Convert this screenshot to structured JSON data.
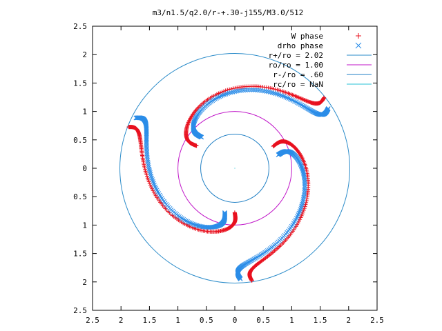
{
  "chart_data": {
    "type": "scatter",
    "title": "m3/n1.5/q2.0/r-+.30-j155/M3.0/512",
    "xlabel": "",
    "ylabel": "",
    "xlim": [
      2.5,
      -2.5
    ],
    "ylim": [
      -2.5,
      2.5
    ],
    "x_tick_labels": [
      "2.5",
      "2",
      "1.5",
      "1",
      "0.5",
      "0",
      "0.5",
      "1",
      "1.5",
      "2",
      "2.5"
    ],
    "y_tick_labels": [
      "2.5",
      "2",
      "1.5",
      "1",
      "0.5",
      "0",
      "0.5",
      "1",
      "1.5",
      "2",
      "2.5"
    ],
    "grid": false,
    "legend_position": "top-right",
    "colors": {
      "w_phase": "#e8101e",
      "drho_phase": "#2b8de8",
      "r_plus": "#2a8bc9",
      "r_o": "#c016c8",
      "r_minus": "#1f7fc4",
      "r_c": "#26c2d6"
    },
    "series": [
      {
        "name": "W phase",
        "marker": "plus",
        "color": "#e8101e",
        "spirals": [
          {
            "r_start": 0.78,
            "r_end": 2.0,
            "theta_start": 0.52,
            "theta_end": -1.42
          },
          {
            "r_start": 0.78,
            "r_end": 2.0,
            "theta_start": 2.61,
            "theta_end": 0.67
          },
          {
            "r_start": 0.78,
            "r_end": 2.0,
            "theta_start": 4.71,
            "theta_end": 2.77
          }
        ]
      },
      {
        "name": "drho phase",
        "marker": "x",
        "color": "#2b8de8",
        "spirals": [
          {
            "r_start": 0.8,
            "r_end": 1.95,
            "theta_start": 0.3,
            "theta_end": -1.52
          },
          {
            "r_start": 0.8,
            "r_end": 1.95,
            "theta_start": 2.39,
            "theta_end": 0.57
          },
          {
            "r_start": 0.8,
            "r_end": 1.95,
            "theta_start": 4.49,
            "theta_end": 2.67
          }
        ]
      },
      {
        "name": "r+/ro = 2.02",
        "type": "circle",
        "r": 2.02,
        "color": "#2a8bc9"
      },
      {
        "name": "ro/ro = 1.00",
        "type": "circle",
        "r": 1.0,
        "color": "#c016c8"
      },
      {
        "name": "r-/ro = .60",
        "type": "circle",
        "r": 0.6,
        "color": "#1f7fc4"
      },
      {
        "name": "rc/ro = NaN",
        "type": "circle",
        "r": null,
        "color": "#26c2d6"
      }
    ]
  }
}
